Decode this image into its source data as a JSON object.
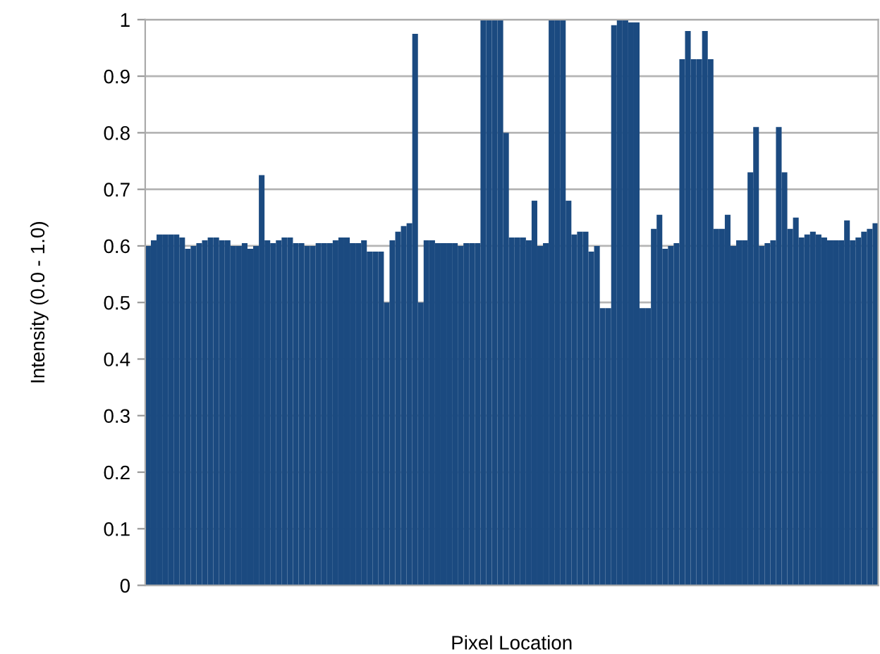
{
  "chart_data": {
    "type": "bar",
    "xlabel": "Pixel Location",
    "ylabel": "Intensity (0.0 - 1.0)",
    "categories": [
      null,
      null,
      null,
      null,
      null,
      null,
      null,
      null,
      null,
      null,
      null,
      null,
      null,
      null,
      null,
      null,
      null,
      null,
      null,
      null,
      null,
      null,
      null,
      null,
      null,
      null,
      null,
      null,
      null,
      null,
      null,
      null,
      null,
      null,
      null,
      null,
      null,
      null,
      null,
      null,
      null,
      null,
      null,
      null,
      null,
      null,
      null,
      null,
      null,
      null,
      null,
      null,
      null,
      null,
      null,
      null,
      null,
      null,
      null,
      null,
      null,
      null,
      null,
      null,
      null,
      null,
      null,
      null,
      null,
      null,
      null,
      null,
      null,
      null,
      null,
      null,
      null,
      null,
      null,
      null,
      null,
      null,
      null,
      null,
      null,
      null,
      null,
      null,
      null,
      null,
      null,
      null,
      null,
      null,
      null,
      null,
      null,
      null,
      null,
      null,
      null,
      null,
      null,
      null,
      null,
      null,
      null,
      null,
      null,
      null,
      null,
      null,
      null,
      null,
      null,
      null,
      null,
      null,
      null,
      null,
      null,
      null,
      null,
      null,
      null,
      null,
      null,
      null,
      null
    ],
    "values": [
      0.6,
      0.61,
      0.62,
      0.62,
      0.62,
      0.62,
      0.615,
      0.595,
      0.6,
      0.605,
      0.61,
      0.615,
      0.615,
      0.61,
      0.61,
      0.6,
      0.6,
      0.605,
      0.595,
      0.6,
      0.725,
      0.61,
      0.605,
      0.61,
      0.615,
      0.615,
      0.605,
      0.605,
      0.6,
      0.6,
      0.605,
      0.605,
      0.605,
      0.61,
      0.615,
      0.615,
      0.605,
      0.605,
      0.61,
      0.59,
      0.59,
      0.59,
      0.5,
      0.61,
      0.625,
      0.635,
      0.64,
      0.975,
      0.5,
      0.61,
      0.61,
      0.605,
      0.605,
      0.605,
      0.605,
      0.6,
      0.605,
      0.605,
      0.605,
      1.0,
      1.0,
      1.0,
      1.0,
      0.8,
      0.615,
      0.615,
      0.615,
      0.61,
      0.68,
      0.6,
      0.605,
      1.0,
      1.0,
      1.0,
      0.68,
      0.62,
      0.625,
      0.625,
      0.59,
      0.6,
      0.49,
      0.49,
      0.99,
      1.0,
      1.0,
      0.995,
      0.995,
      0.49,
      0.49,
      0.63,
      0.655,
      0.595,
      0.6,
      0.605,
      0.93,
      0.98,
      0.93,
      0.93,
      0.98,
      0.93,
      0.63,
      0.63,
      0.655,
      0.6,
      0.61,
      0.61,
      0.73,
      0.81,
      0.6,
      0.605,
      0.61,
      0.81,
      0.73,
      0.63,
      0.65,
      0.615,
      0.62,
      0.625,
      0.62,
      0.615,
      0.61,
      0.61,
      0.61,
      0.645,
      0.61,
      0.615,
      0.625,
      0.63,
      0.64
    ],
    "color": "#1b4a80",
    "ylim": [
      0,
      1
    ],
    "yticks": [
      0,
      0.1,
      0.2,
      0.3,
      0.4,
      0.5,
      0.6,
      0.7,
      0.8,
      0.9,
      1
    ],
    "grid": "y"
  }
}
